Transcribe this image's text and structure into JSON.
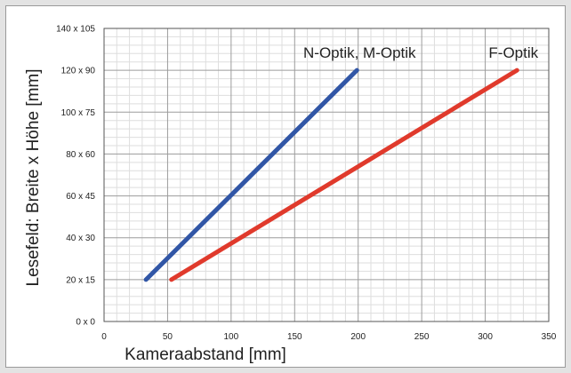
{
  "chart_data": {
    "type": "line",
    "title": "",
    "xlabel": "Kameraabstand [mm]",
    "ylabel": "Lesefeld: Breite x Höhe [mm]",
    "xlim": [
      0,
      350
    ],
    "ylim": [
      0,
      140
    ],
    "x_ticks": [
      "0",
      "50",
      "100",
      "150",
      "200",
      "250",
      "300",
      "350"
    ],
    "y_ticks": [
      "0 x 0",
      "20 x 15",
      "40 x 30",
      "60 x 45",
      "80 x 60",
      "100 x 75",
      "120 x 90",
      "140 x 105"
    ],
    "grid": true,
    "series": [
      {
        "name": "N-Optik, M-Optik",
        "color": "#3156a6",
        "x": [
          33,
          199
        ],
        "y": [
          20,
          120
        ]
      },
      {
        "name": "F-Optik",
        "color": "#e03a2c",
        "x": [
          53,
          325
        ],
        "y": [
          20,
          120
        ]
      }
    ]
  }
}
